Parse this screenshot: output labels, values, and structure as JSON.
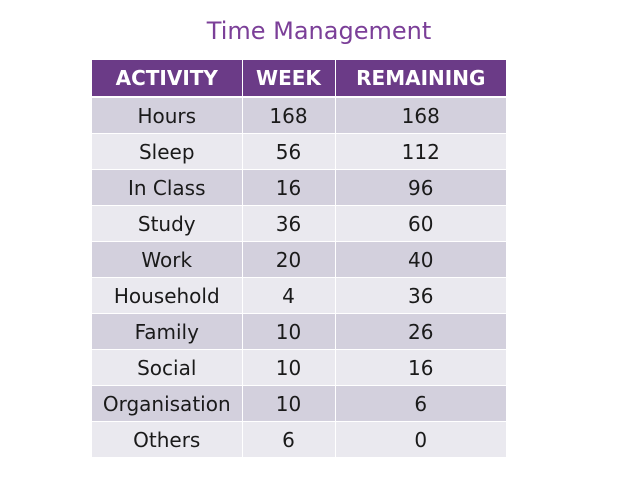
{
  "title": "Time Management",
  "table": {
    "headers": [
      "ACTIVITY",
      "WEEK",
      "REMAINING"
    ],
    "rows": [
      [
        "Hours",
        "168",
        "168"
      ],
      [
        "Sleep",
        "56",
        "112"
      ],
      [
        "In Class",
        "16",
        "96"
      ],
      [
        "Study",
        "36",
        "60"
      ],
      [
        "Work",
        "20",
        "40"
      ],
      [
        "Household",
        "4",
        "36"
      ],
      [
        "Family",
        "10",
        "26"
      ],
      [
        "Social",
        "10",
        "16"
      ],
      [
        "Organisation",
        "10",
        "6"
      ],
      [
        "Others",
        "6",
        "0"
      ]
    ]
  },
  "colors": {
    "title": "#7b3f98",
    "header_bg": "#6b3b87",
    "row_odd": "#d3d0dd",
    "row_even": "#eae9ef"
  }
}
